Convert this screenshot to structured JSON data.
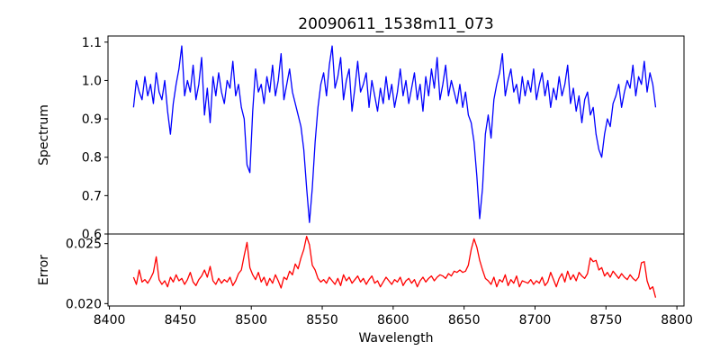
{
  "chart_data": [
    {
      "type": "line",
      "title": "20090611_1538m11_073",
      "xlabel": "",
      "ylabel": "Spectrum",
      "xlim": [
        8399,
        8805
      ],
      "ylim": [
        0.6,
        1.116
      ],
      "yticks": [
        0.6,
        0.7,
        0.8,
        0.9,
        1.0,
        1.1
      ],
      "ytick_labels": [
        "0.6",
        "0.7",
        "0.8",
        "0.9",
        "1.0",
        "1.1"
      ],
      "grid": false,
      "color": "#0000ff",
      "x_start": 8417,
      "x_step": 2,
      "values": [
        0.93,
        1.0,
        0.97,
        0.95,
        1.01,
        0.96,
        0.99,
        0.94,
        1.02,
        0.97,
        0.95,
        1.0,
        0.92,
        0.86,
        0.94,
        0.99,
        1.03,
        1.09,
        0.96,
        1.0,
        0.97,
        1.04,
        0.95,
        0.99,
        1.06,
        0.91,
        0.98,
        0.89,
        1.01,
        0.96,
        1.02,
        0.97,
        0.94,
        1.0,
        0.98,
        1.05,
        0.96,
        0.99,
        0.93,
        0.9,
        0.78,
        0.76,
        0.92,
        1.03,
        0.97,
        0.99,
        0.94,
        1.01,
        0.97,
        1.04,
        0.96,
        1.0,
        1.07,
        0.95,
        0.99,
        1.03,
        0.97,
        0.94,
        0.91,
        0.88,
        0.82,
        0.72,
        0.63,
        0.72,
        0.84,
        0.93,
        0.99,
        1.02,
        0.96,
        1.04,
        1.09,
        0.98,
        1.01,
        1.06,
        0.95,
        1.0,
        1.03,
        0.92,
        0.98,
        1.05,
        0.97,
        0.99,
        1.02,
        0.93,
        1.0,
        0.96,
        0.92,
        0.98,
        0.94,
        1.01,
        0.95,
        0.99,
        0.93,
        0.97,
        1.03,
        0.96,
        1.0,
        0.94,
        0.98,
        1.02,
        0.95,
        0.99,
        0.92,
        1.01,
        0.96,
        1.03,
        0.98,
        1.06,
        0.95,
        0.99,
        1.04,
        0.96,
        1.0,
        0.97,
        0.94,
        0.99,
        0.93,
        0.97,
        0.91,
        0.89,
        0.84,
        0.75,
        0.64,
        0.72,
        0.86,
        0.91,
        0.85,
        0.95,
        0.99,
        1.02,
        1.07,
        0.96,
        1.0,
        1.03,
        0.97,
        0.99,
        0.94,
        1.01,
        0.96,
        1.0,
        0.97,
        1.03,
        0.95,
        0.99,
        1.02,
        0.96,
        1.0,
        0.93,
        0.98,
        0.95,
        1.01,
        0.96,
        0.99,
        1.04,
        0.94,
        0.98,
        0.92,
        0.96,
        0.89,
        0.95,
        0.97,
        0.91,
        0.93,
        0.86,
        0.82,
        0.8,
        0.86,
        0.9,
        0.88,
        0.94,
        0.96,
        0.99,
        0.93,
        0.97,
        1.0,
        0.98,
        1.04,
        0.96,
        1.01,
        0.99,
        1.05,
        0.97,
        1.02,
        0.99,
        0.93
      ]
    },
    {
      "type": "line",
      "xlabel": "Wavelength",
      "ylabel": "Error",
      "xlim": [
        8399,
        8805
      ],
      "ylim": [
        0.0198,
        0.0258
      ],
      "xticks": [
        8400,
        8450,
        8500,
        8550,
        8600,
        8650,
        8700,
        8750,
        8800
      ],
      "xtick_labels": [
        "8400",
        "8450",
        "8500",
        "8550",
        "8600",
        "8650",
        "8700",
        "8750",
        "8800"
      ],
      "yticks": [
        0.02,
        0.025
      ],
      "ytick_labels": [
        "0.020",
        "0.025"
      ],
      "grid": false,
      "color": "#ff0000",
      "x_start": 8417,
      "x_step": 2,
      "values": [
        0.0222,
        0.0216,
        0.0228,
        0.0218,
        0.022,
        0.0217,
        0.0221,
        0.0226,
        0.0239,
        0.022,
        0.0216,
        0.0219,
        0.0214,
        0.0222,
        0.0218,
        0.0224,
        0.0219,
        0.0221,
        0.0216,
        0.022,
        0.0226,
        0.0218,
        0.0215,
        0.022,
        0.0223,
        0.0228,
        0.0222,
        0.0231,
        0.0219,
        0.0216,
        0.0221,
        0.0217,
        0.022,
        0.0218,
        0.0222,
        0.0215,
        0.0219,
        0.0225,
        0.0228,
        0.024,
        0.0251,
        0.023,
        0.0224,
        0.022,
        0.0226,
        0.0218,
        0.0222,
        0.0215,
        0.0221,
        0.0217,
        0.0224,
        0.0219,
        0.0213,
        0.0222,
        0.022,
        0.0227,
        0.0224,
        0.0233,
        0.0229,
        0.0238,
        0.0245,
        0.0256,
        0.0249,
        0.0232,
        0.0228,
        0.0221,
        0.0218,
        0.022,
        0.0217,
        0.0222,
        0.0219,
        0.0216,
        0.0221,
        0.0215,
        0.0224,
        0.0219,
        0.0222,
        0.0217,
        0.022,
        0.0223,
        0.0218,
        0.0221,
        0.0216,
        0.022,
        0.0223,
        0.0217,
        0.0219,
        0.0214,
        0.0218,
        0.0222,
        0.0219,
        0.0216,
        0.022,
        0.0218,
        0.0222,
        0.0215,
        0.0219,
        0.0221,
        0.0217,
        0.022,
        0.0214,
        0.0219,
        0.0222,
        0.0218,
        0.0221,
        0.0223,
        0.0219,
        0.0222,
        0.0224,
        0.0223,
        0.0221,
        0.0225,
        0.0223,
        0.0227,
        0.0226,
        0.0228,
        0.0226,
        0.0227,
        0.0232,
        0.0245,
        0.0254,
        0.0247,
        0.0236,
        0.0228,
        0.0221,
        0.0219,
        0.0216,
        0.0222,
        0.0214,
        0.022,
        0.0218,
        0.0224,
        0.0215,
        0.022,
        0.0217,
        0.0223,
        0.0214,
        0.0219,
        0.0218,
        0.0217,
        0.022,
        0.0216,
        0.0219,
        0.0217,
        0.0222,
        0.0215,
        0.0218,
        0.0226,
        0.022,
        0.0214,
        0.0221,
        0.0225,
        0.0218,
        0.0227,
        0.022,
        0.0224,
        0.0219,
        0.0226,
        0.0223,
        0.0221,
        0.0225,
        0.0238,
        0.0235,
        0.0236,
        0.0228,
        0.023,
        0.0223,
        0.0226,
        0.0222,
        0.0227,
        0.0224,
        0.0221,
        0.0225,
        0.0222,
        0.022,
        0.0224,
        0.0221,
        0.0219,
        0.0222,
        0.0234,
        0.0235,
        0.0219,
        0.0212,
        0.0214,
        0.0205
      ]
    }
  ]
}
